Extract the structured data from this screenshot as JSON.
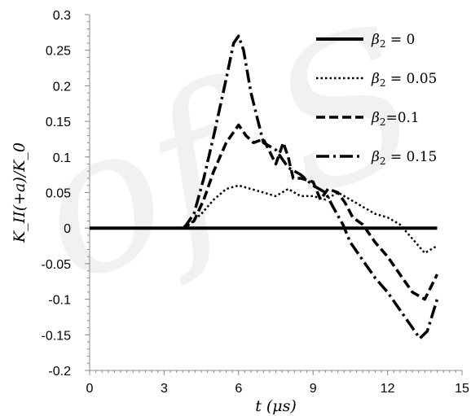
{
  "chart_data": {
    "type": "line",
    "title": "",
    "xlabel": "t (μs)",
    "ylabel": "K_II(+a)/K_0",
    "xlim": [
      0,
      15
    ],
    "ylim": [
      -0.2,
      0.3
    ],
    "xticks": [
      0,
      3,
      6,
      9,
      12,
      15
    ],
    "xtick_labels": [
      "0",
      "3",
      "6",
      "9",
      "12",
      "15"
    ],
    "yticks": [
      0.3,
      0.25,
      0.2,
      0.15,
      0.1,
      0.05,
      0,
      -0.05,
      -0.1,
      -0.15,
      -0.2
    ],
    "ytick_labels": [
      "0.3",
      "0.25",
      "0.2",
      "0.15",
      "0.1",
      "0.05",
      "0",
      "-0.05",
      "-0.1",
      "-0.15",
      "-0.2"
    ],
    "grid": false,
    "legend_position": "top-right",
    "colors": {
      "line": "#000000",
      "axis": "#8c8c8c",
      "watermark": "#d9d9d9"
    },
    "series": [
      {
        "name": "β₂ = 0",
        "legend_symbol": "β",
        "legend_subscript": "2",
        "legend_suffix": " = 0",
        "style": "solid",
        "x": [
          0,
          14
        ],
        "y": [
          0,
          0
        ]
      },
      {
        "name": "β₂ = 0.05",
        "legend_symbol": "β",
        "legend_subscript": "2",
        "legend_suffix": " = 0.05",
        "style": "dotted",
        "x": [
          0,
          3.6,
          4.0,
          4.5,
          5.0,
          5.5,
          6.0,
          6.5,
          7.0,
          7.5,
          8.0,
          8.5,
          9.0,
          9.5,
          10.0,
          10.5,
          11.0,
          11.5,
          12.0,
          12.5,
          13.0,
          13.5,
          14.0
        ],
        "y": [
          0,
          0,
          0.005,
          0.02,
          0.04,
          0.055,
          0.06,
          0.055,
          0.05,
          0.045,
          0.055,
          0.045,
          0.045,
          0.04,
          0.05,
          0.04,
          0.03,
          0.02,
          0.015,
          0.005,
          -0.015,
          -0.035,
          -0.025
        ]
      },
      {
        "name": "β₂=0.1",
        "legend_symbol": "β",
        "legend_subscript": "2",
        "legend_suffix": "=0.1",
        "style": "dashed",
        "x": [
          0,
          3.8,
          4.2,
          4.6,
          5.0,
          5.5,
          6.0,
          6.3,
          6.6,
          7.0,
          7.5,
          7.8,
          8.0,
          8.2,
          8.5,
          9.0,
          9.3,
          9.6,
          10.0,
          10.3,
          10.6,
          11.0,
          11.5,
          12.0,
          12.5,
          13.0,
          13.5,
          14.0
        ],
        "y": [
          0,
          0,
          0.01,
          0.04,
          0.08,
          0.12,
          0.145,
          0.13,
          0.12,
          0.125,
          0.09,
          0.12,
          0.1,
          0.07,
          0.07,
          0.065,
          0.04,
          0.055,
          0.05,
          0.035,
          0.015,
          0.005,
          -0.02,
          -0.04,
          -0.065,
          -0.09,
          -0.1,
          -0.065
        ]
      },
      {
        "name": "β₂ = 0.15",
        "legend_symbol": "β",
        "legend_subscript": "2",
        "legend_suffix": " = 0.15",
        "style": "dashdot",
        "x": [
          0,
          3.8,
          4.2,
          4.6,
          5.0,
          5.5,
          5.8,
          6.0,
          6.2,
          6.5,
          7.0,
          7.5,
          8.0,
          8.5,
          9.0,
          9.5,
          9.8,
          10.2,
          10.5,
          11.0,
          11.5,
          12.0,
          12.5,
          13.0,
          13.3,
          13.6,
          14.0
        ],
        "y": [
          0,
          0,
          0.02,
          0.07,
          0.13,
          0.21,
          0.26,
          0.27,
          0.25,
          0.19,
          0.12,
          0.11,
          0.085,
          0.075,
          0.06,
          0.05,
          0.03,
          0.005,
          -0.02,
          -0.045,
          -0.07,
          -0.09,
          -0.115,
          -0.14,
          -0.155,
          -0.145,
          -0.1
        ]
      }
    ]
  },
  "watermark": {
    "text": "of S",
    "color": "#d9d9d9"
  }
}
